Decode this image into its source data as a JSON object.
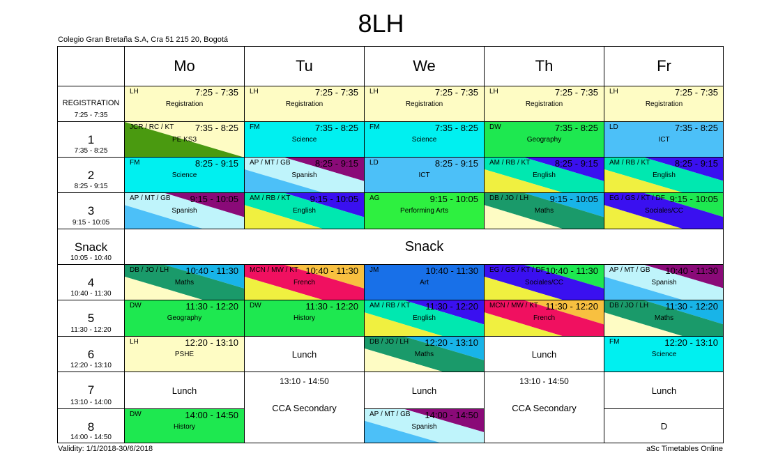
{
  "header": {
    "title": "8LH",
    "school": "Colegio Gran Bretaña S.A, Cra 51 215 20, Bogotá",
    "validity": "Validity: 1/1/2018-30/6/2018",
    "credit": "aSc Timetables Online"
  },
  "days": [
    "Mo",
    "Tu",
    "We",
    "Th",
    "Fr"
  ],
  "periods": [
    {
      "name": "REGISTRATION",
      "time": "7:25 - 7:35"
    },
    {
      "name": "1",
      "time": "7:35 - 8:25"
    },
    {
      "name": "2",
      "time": "8:25 - 9:15"
    },
    {
      "name": "3",
      "time": "9:15 - 10:05"
    },
    {
      "name": "Snack",
      "time": "10:05 - 10:40"
    },
    {
      "name": "4",
      "time": "10:40 - 11:30"
    },
    {
      "name": "5",
      "time": "11:30 - 12:20"
    },
    {
      "name": "6",
      "time": "12:20 - 13:10"
    },
    {
      "name": "7",
      "time": "13:10 - 14:00"
    },
    {
      "name": "8",
      "time": "14:00 - 14:50"
    }
  ],
  "snack_label": "Snack",
  "lessons": [
    {
      "day": 0,
      "period": 0,
      "teacher": "LH",
      "time": "7:25 - 7:35",
      "subject": "Registration",
      "colors": [
        "#fefcc4"
      ]
    },
    {
      "day": 1,
      "period": 0,
      "teacher": "LH",
      "time": "7:25 - 7:35",
      "subject": "Registration",
      "colors": [
        "#fefcc4"
      ]
    },
    {
      "day": 2,
      "period": 0,
      "teacher": "LH",
      "time": "7:25 - 7:35",
      "subject": "Registration",
      "colors": [
        "#fefcc4"
      ]
    },
    {
      "day": 3,
      "period": 0,
      "teacher": "LH",
      "time": "7:25 - 7:35",
      "subject": "Registration",
      "colors": [
        "#fefcc4"
      ]
    },
    {
      "day": 4,
      "period": 0,
      "teacher": "LH",
      "time": "7:25 - 7:35",
      "subject": "Registration",
      "colors": [
        "#fefcc4"
      ]
    },
    {
      "day": 0,
      "period": 1,
      "teacher": "JCR / RC / KT",
      "time": "7:35 - 8:25",
      "subject": "PE KS3",
      "colors": [
        "#fefcc4",
        "#4a9a10"
      ]
    },
    {
      "day": 1,
      "period": 1,
      "teacher": "FM",
      "time": "7:35 - 8:25",
      "subject": "Science",
      "colors": [
        "#00f0f0"
      ]
    },
    {
      "day": 2,
      "period": 1,
      "teacher": "FM",
      "time": "7:35 - 8:25",
      "subject": "Science",
      "colors": [
        "#00f0f0"
      ]
    },
    {
      "day": 3,
      "period": 1,
      "teacher": "DW",
      "time": "7:35 - 8:25",
      "subject": "Geography",
      "colors": [
        "#1ee850"
      ]
    },
    {
      "day": 4,
      "period": 1,
      "teacher": "LD",
      "time": "7:35 - 8:25",
      "subject": "ICT",
      "colors": [
        "#4cc0f8"
      ]
    },
    {
      "day": 0,
      "period": 2,
      "teacher": "FM",
      "time": "8:25 - 9:15",
      "subject": "Science",
      "colors": [
        "#00f0f0"
      ]
    },
    {
      "day": 1,
      "period": 2,
      "teacher": "AP / MT / GB",
      "time": "8:25 - 9:15",
      "subject": "Spanish",
      "colors": [
        "#8a0a78",
        "#bff4fb",
        "#4cc0f8"
      ]
    },
    {
      "day": 2,
      "period": 2,
      "teacher": "LD",
      "time": "8:25 - 9:15",
      "subject": "ICT",
      "colors": [
        "#4cc0f8"
      ]
    },
    {
      "day": 3,
      "period": 2,
      "teacher": "AM / RB / KT",
      "time": "8:25 - 9:15",
      "subject": "English",
      "colors": [
        "#3a10f0",
        "#00e8b0",
        "#f0f040"
      ]
    },
    {
      "day": 4,
      "period": 2,
      "teacher": "AM / RB / KT",
      "time": "8:25 - 9:15",
      "subject": "English",
      "colors": [
        "#3a10f0",
        "#00e8b0",
        "#f0f040"
      ]
    },
    {
      "day": 0,
      "period": 3,
      "teacher": "AP / MT / GB",
      "time": "9:15 - 10:05",
      "subject": "Spanish",
      "colors": [
        "#8a0a78",
        "#bff4fb",
        "#4cc0f8"
      ]
    },
    {
      "day": 1,
      "period": 3,
      "teacher": "AM / RB / KT",
      "time": "9:15 - 10:05",
      "subject": "English",
      "colors": [
        "#3a10f0",
        "#00e8b0",
        "#f0f040"
      ]
    },
    {
      "day": 2,
      "period": 3,
      "teacher": "AG",
      "time": "9:15 - 10:05",
      "subject": "Performing Arts",
      "colors": [
        "#2ef040"
      ]
    },
    {
      "day": 3,
      "period": 3,
      "teacher": "DB / JO / LH",
      "time": "9:15 - 10:05",
      "subject": "Maths",
      "colors": [
        "#18b4e8",
        "#1a9a6a",
        "#fefcc4"
      ]
    },
    {
      "day": 4,
      "period": 3,
      "teacher": "EG / GS / KT / DF",
      "time": "9:15 - 10:05",
      "subject": "Sociales/CC",
      "colors": [
        "#1ee850",
        "#3a10f0",
        "#f0f040"
      ]
    },
    {
      "day": 0,
      "period": 5,
      "teacher": "DB / JO / LH",
      "time": "10:40 - 11:30",
      "subject": "Maths",
      "colors": [
        "#18b4e8",
        "#1a9a6a",
        "#fefcc4"
      ]
    },
    {
      "day": 1,
      "period": 5,
      "teacher": "MCN / MW / KT",
      "time": "10:40 - 11:30",
      "subject": "French",
      "colors": [
        "#f8c040",
        "#f01060",
        "#f0f040"
      ]
    },
    {
      "day": 2,
      "period": 5,
      "teacher": "JM",
      "time": "10:40 - 11:30",
      "subject": "Art",
      "colors": [
        "#1870e8"
      ]
    },
    {
      "day": 3,
      "period": 5,
      "teacher": "EG / GS / KT / DF",
      "time": "10:40 - 11:30",
      "subject": "Sociales/CC",
      "colors": [
        "#1ee850",
        "#3a10f0",
        "#f0f040"
      ]
    },
    {
      "day": 4,
      "period": 5,
      "teacher": "AP / MT / GB",
      "time": "10:40 - 11:30",
      "subject": "Spanish",
      "colors": [
        "#8a0a78",
        "#bff4fb",
        "#4cc0f8"
      ]
    },
    {
      "day": 0,
      "period": 6,
      "teacher": "DW",
      "time": "11:30 - 12:20",
      "subject": "Geography",
      "colors": [
        "#1ee850"
      ]
    },
    {
      "day": 1,
      "period": 6,
      "teacher": "DW",
      "time": "11:30 - 12:20",
      "subject": "History",
      "colors": [
        "#1ee850"
      ]
    },
    {
      "day": 2,
      "period": 6,
      "teacher": "AM / RB / KT",
      "time": "11:30 - 12:20",
      "subject": "English",
      "colors": [
        "#3a10f0",
        "#00e8b0",
        "#f0f040"
      ]
    },
    {
      "day": 3,
      "period": 6,
      "teacher": "MCN / MW / KT",
      "time": "11:30 - 12:20",
      "subject": "French",
      "colors": [
        "#f8c040",
        "#f01060",
        "#f0f040"
      ]
    },
    {
      "day": 4,
      "period": 6,
      "teacher": "DB / JO / LH",
      "time": "11:30 - 12:20",
      "subject": "Maths",
      "colors": [
        "#18b4e8",
        "#1a9a6a",
        "#fefcc4"
      ]
    },
    {
      "day": 0,
      "period": 7,
      "teacher": "LH",
      "time": "12:20 - 13:10",
      "subject": "PSHE",
      "colors": [
        "#fefcc4"
      ]
    },
    {
      "day": 2,
      "period": 7,
      "teacher": "DB / JO / LH",
      "time": "12:20 - 13:10",
      "subject": "Maths",
      "colors": [
        "#18b4e8",
        "#1a9a6a",
        "#fefcc4"
      ]
    },
    {
      "day": 4,
      "period": 7,
      "teacher": "FM",
      "time": "12:20 - 13:10",
      "subject": "Science",
      "colors": [
        "#00f0f0"
      ]
    },
    {
      "day": 0,
      "period": 9,
      "teacher": "DW",
      "time": "14:00 - 14:50",
      "subject": "History",
      "colors": [
        "#1ee850"
      ]
    },
    {
      "day": 2,
      "period": 9,
      "teacher": "AP / MT / GB",
      "time": "14:00 - 14:50",
      "subject": "Spanish",
      "colors": [
        "#8a0a78",
        "#bff4fb",
        "#4cc0f8"
      ]
    }
  ],
  "plain_cells": [
    {
      "day": 1,
      "period": 7,
      "text": "Lunch"
    },
    {
      "day": 3,
      "period": 7,
      "text": "Lunch"
    },
    {
      "day": 0,
      "period": 8,
      "text": "Lunch"
    },
    {
      "day": 2,
      "period": 8,
      "text": "Lunch"
    },
    {
      "day": 4,
      "period": 8,
      "text": "Lunch"
    },
    {
      "day": 4,
      "period": 9,
      "text": "D"
    }
  ],
  "cca_cells": [
    {
      "day": 1,
      "period": 8,
      "time": "13:10 - 14:50",
      "label": "CCA Secondary"
    },
    {
      "day": 3,
      "period": 8,
      "time": "13:10 - 14:50",
      "label": "CCA Secondary"
    }
  ]
}
